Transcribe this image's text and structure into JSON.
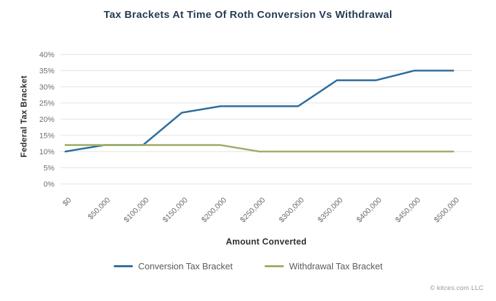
{
  "page": {
    "attribution": "© kitces.com LLC"
  },
  "chart_data": {
    "type": "line",
    "title": "Tax Brackets At Time Of Roth Conversion Vs Withdrawal",
    "xlabel": "Amount Converted",
    "ylabel": "Federal Tax Bracket",
    "categories": [
      "$0",
      "$50,000",
      "$100,000",
      "$150,000",
      "$200,000",
      "$250,000",
      "$300,000",
      "$350,000",
      "$400,000",
      "$450,000",
      "$500,000"
    ],
    "series": [
      {
        "name": "Conversion Tax Bracket",
        "color": "#2e6d9e",
        "values": [
          10,
          12,
          12,
          22,
          24,
          24,
          24,
          32,
          32,
          35,
          35
        ]
      },
      {
        "name": "Withdrawal Tax Bracket",
        "color": "#9dae63",
        "values": [
          12,
          12,
          12,
          12,
          12,
          10,
          10,
          10,
          10,
          10,
          10
        ]
      }
    ],
    "ylim": [
      0,
      40
    ],
    "ytick_step": 5,
    "ytick_suffix": "%",
    "grid": "horizontal",
    "legend_position": "bottom"
  },
  "colors": {
    "grid": "#ebebeb",
    "tick_label": "#6d6d6d",
    "background": "#ffffff"
  }
}
